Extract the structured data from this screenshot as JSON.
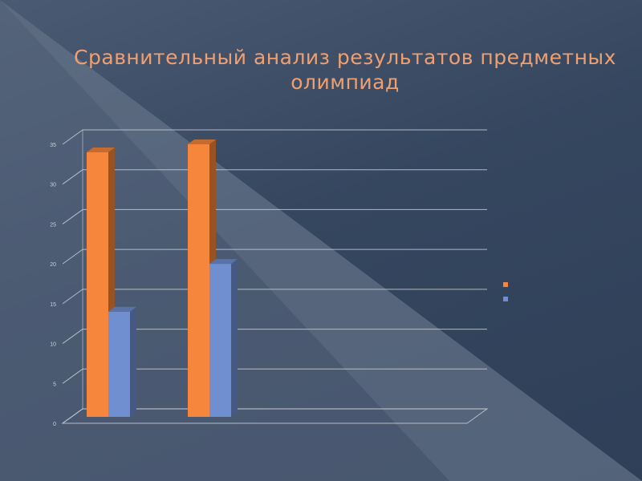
{
  "title_line1": "Сравнительный анализ результатов предметных",
  "title_line2": "олимпиад",
  "chart_data": {
    "type": "bar",
    "categories": [
      "",
      ""
    ],
    "series": [
      {
        "name": "",
        "color": "#f5863b",
        "values": [
          34,
          35
        ]
      },
      {
        "name": "",
        "color": "#6f8fd1",
        "values": [
          14,
          20
        ]
      }
    ],
    "ylim": [
      0,
      35
    ],
    "yticks": [
      0,
      5,
      10,
      15,
      20,
      25,
      30,
      35
    ],
    "grid": true,
    "legend_position": "right",
    "xlabel": "",
    "ylabel": ""
  }
}
